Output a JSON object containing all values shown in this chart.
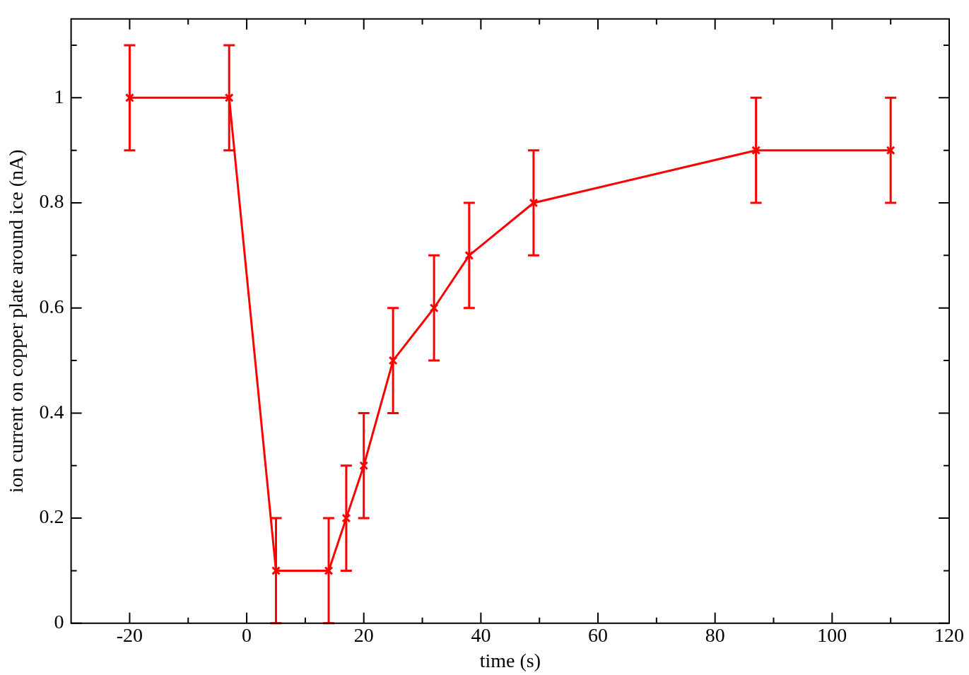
{
  "chart_data": {
    "type": "line",
    "xlabel": "time (s)",
    "ylabel": "ion current on copper plate around ice (nA)",
    "x": [
      -20,
      -3,
      5,
      14,
      17,
      20,
      25,
      32,
      38,
      49,
      87,
      110
    ],
    "series": [
      {
        "color": "#ff0000",
        "values": [
          1,
          1,
          0.1,
          0.1,
          0.2,
          0.3,
          0.5,
          0.6,
          0.7,
          0.8,
          0.9,
          0.9
        ],
        "errors": [
          0.1,
          0.1,
          0.1,
          0.1,
          0.1,
          0.1,
          0.1,
          0.1,
          0.1,
          0.1,
          0.1,
          0.1
        ]
      }
    ],
    "xlim": [
      -30,
      120
    ],
    "xticks": [
      -20,
      {
        "value": -10,
        "label": null
      },
      0,
      {
        "value": 10,
        "label": null
      },
      20,
      {
        "value": 30,
        "label": null
      },
      40,
      {
        "value": 50,
        "label": null
      },
      60,
      {
        "value": 70,
        "label": null
      },
      80,
      {
        "value": 90,
        "label": null
      },
      100,
      {
        "value": 110,
        "label": null
      },
      120
    ],
    "ylim": [
      0,
      1.15
    ],
    "yticks": [
      0,
      {
        "value": 0.1,
        "label": null
      },
      0.2,
      {
        "value": 0.3,
        "label": null
      },
      0.4,
      {
        "value": 0.5,
        "label": null
      },
      0.6,
      {
        "value": 0.7,
        "label": null
      },
      0.8,
      {
        "value": 0.9,
        "label": null
      },
      1,
      {
        "value": 1.1,
        "label": null
      }
    ],
    "grid": false,
    "legend": false,
    "marker": "cross",
    "line_style": "solid"
  }
}
